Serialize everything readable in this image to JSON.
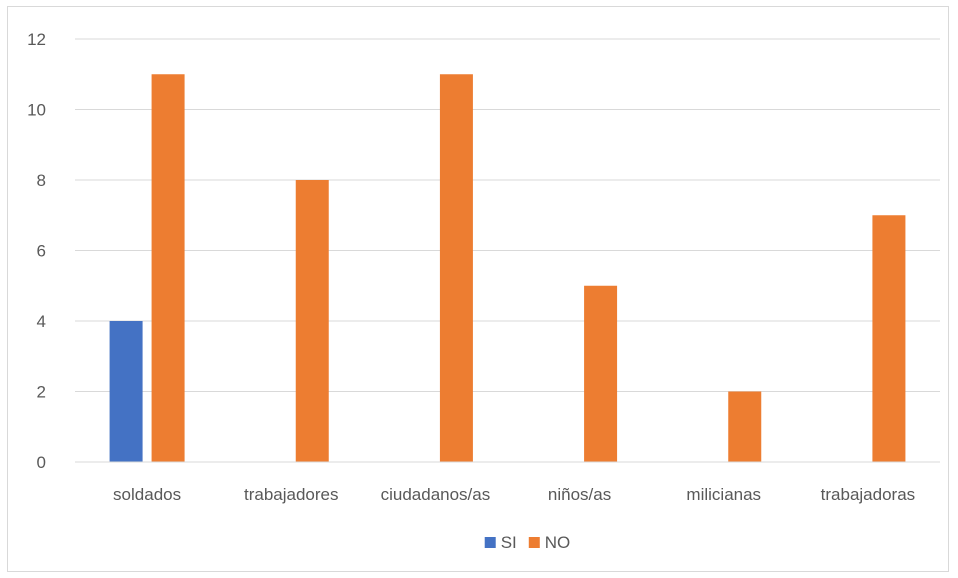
{
  "chart_data": {
    "type": "bar",
    "categories": [
      "soldados",
      "trabajadores",
      "ciudadanos/as",
      "niños/as",
      "milicianas",
      "trabajadoras"
    ],
    "series": [
      {
        "name": "SI",
        "color": "#4472c4",
        "values": [
          4,
          0,
          0,
          0,
          0,
          0
        ]
      },
      {
        "name": "NO",
        "color": "#ed7d31",
        "values": [
          11,
          8,
          11,
          5,
          2,
          7
        ]
      }
    ],
    "ylim": [
      0,
      12
    ],
    "yticks": [
      0,
      2,
      4,
      6,
      8,
      10,
      12
    ],
    "grid": true,
    "legend_position": "bottom",
    "gridline_color": "#d9d9d9",
    "title": "",
    "xlabel": "",
    "ylabel": ""
  }
}
